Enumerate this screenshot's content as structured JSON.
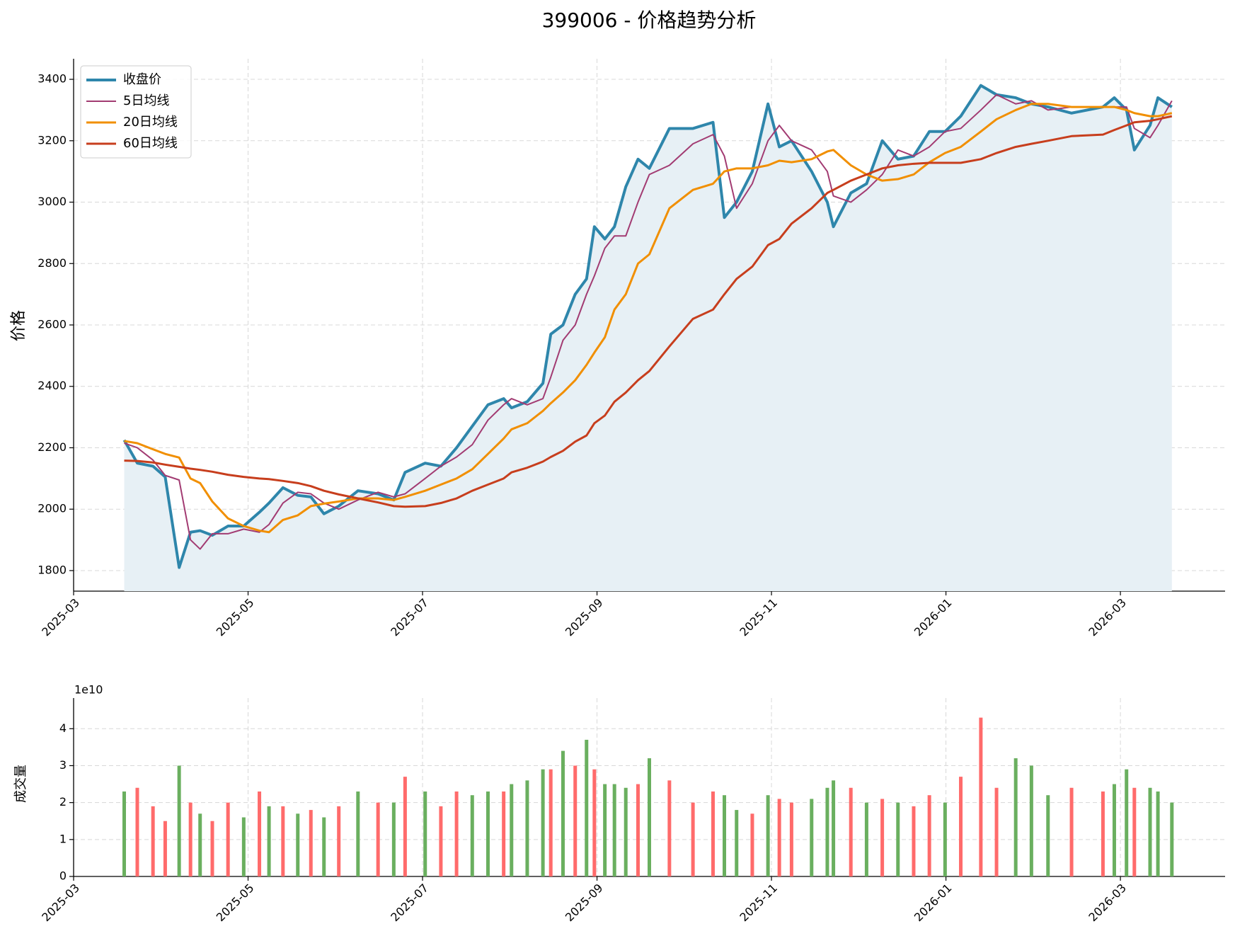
{
  "chart_data": [
    {
      "type": "line",
      "title": "399006 - 价格趋势分析",
      "y_label": "价格",
      "x": [
        0.58,
        0.73,
        0.91,
        1.05,
        1.21,
        1.34,
        1.45,
        1.59,
        1.77,
        1.95,
        2.13,
        2.24,
        2.4,
        2.57,
        2.72,
        2.87,
        3.04,
        3.26,
        3.49,
        3.67,
        3.8,
        4.03,
        4.21,
        4.39,
        4.57,
        4.75,
        4.93,
        5.02,
        5.2,
        5.38,
        5.47,
        5.61,
        5.75,
        5.88,
        5.97,
        6.09,
        6.2,
        6.33,
        6.47,
        6.6,
        6.83,
        7.1,
        7.33,
        7.46,
        7.6,
        7.78,
        7.96,
        8.09,
        8.23,
        8.46,
        8.64,
        8.71,
        8.91,
        9.09,
        9.27,
        9.45,
        9.63,
        9.81,
        9.99,
        10.17,
        10.4,
        10.58,
        10.8,
        10.98,
        11.17,
        11.44,
        11.8,
        11.93,
        12.07,
        12.16,
        12.34,
        12.43,
        12.59
      ],
      "xlim": [
        0,
        13.2
      ],
      "xticks": [
        {
          "value": 0,
          "label": "2025-03"
        },
        {
          "value": 2,
          "label": "2025-05"
        },
        {
          "value": 4,
          "label": "2025-07"
        },
        {
          "value": 6,
          "label": "2025-09"
        },
        {
          "value": 8,
          "label": "2025-11"
        },
        {
          "value": 10,
          "label": "2026-01"
        },
        {
          "value": 12,
          "label": "2026-03"
        }
      ],
      "ylim": [
        1733,
        3467
      ],
      "yticks": [
        1800,
        2000,
        2200,
        2400,
        2600,
        2800,
        3000,
        3200,
        3400
      ],
      "grid": true,
      "legend": "upper left",
      "area_fill": "#e7f0f5",
      "series": [
        {
          "name": "收盘价",
          "color": "#2e86ab",
          "width": 4,
          "values": [
            2225,
            2150,
            2140,
            2105,
            1810,
            1925,
            1930,
            1915,
            1945,
            1945,
            1990,
            2020,
            2070,
            2045,
            2040,
            1985,
            2010,
            2060,
            2050,
            2030,
            2120,
            2150,
            2140,
            2200,
            2270,
            2340,
            2360,
            2330,
            2350,
            2410,
            2570,
            2600,
            2700,
            2750,
            2920,
            2880,
            2920,
            3050,
            3140,
            3110,
            3240,
            3240,
            3260,
            2950,
            3000,
            3100,
            3320,
            3180,
            3200,
            3100,
            3000,
            2920,
            3030,
            3060,
            3200,
            3140,
            3150,
            3230,
            3230,
            3280,
            3380,
            3350,
            3340,
            3320,
            3310,
            3290,
            3310,
            3340,
            3300,
            3170,
            3250,
            3340,
            3310
          ]
        },
        {
          "name": "5日均线",
          "color": "#a23b72",
          "width": 2,
          "values": [
            2215,
            2200,
            2160,
            2110,
            2095,
            1900,
            1870,
            1920,
            1920,
            1935,
            1925,
            1950,
            2020,
            2055,
            2050,
            2020,
            2000,
            2030,
            2055,
            2040,
            2050,
            2100,
            2140,
            2170,
            2210,
            2290,
            2340,
            2360,
            2340,
            2360,
            2430,
            2550,
            2600,
            2700,
            2760,
            2850,
            2890,
            2890,
            3000,
            3090,
            3120,
            3190,
            3220,
            3150,
            2980,
            3060,
            3200,
            3250,
            3200,
            3170,
            3100,
            3020,
            3000,
            3040,
            3090,
            3170,
            3150,
            3180,
            3230,
            3240,
            3300,
            3350,
            3320,
            3330,
            3300,
            3310,
            3310,
            3310,
            3310,
            3240,
            3210,
            3250,
            3330
          ]
        },
        {
          "name": "20日均线",
          "color": "#f18f01",
          "width": 3,
          "values": [
            2222,
            2215,
            2195,
            2180,
            2168,
            2100,
            2085,
            2025,
            1970,
            1945,
            1930,
            1925,
            1965,
            1980,
            2010,
            2018,
            2025,
            2035,
            2035,
            2030,
            2040,
            2060,
            2080,
            2100,
            2130,
            2180,
            2230,
            2260,
            2280,
            2320,
            2345,
            2380,
            2420,
            2470,
            2510,
            2560,
            2650,
            2700,
            2800,
            2830,
            2980,
            3040,
            3060,
            3100,
            3110,
            3110,
            3120,
            3135,
            3130,
            3140,
            3165,
            3170,
            3120,
            3090,
            3070,
            3075,
            3090,
            3130,
            3160,
            3180,
            3230,
            3270,
            3300,
            3320,
            3320,
            3310,
            3310,
            3310,
            3300,
            3290,
            3280,
            3280,
            3290
          ]
        },
        {
          "name": "60日均线",
          "color": "#c73e1d",
          "width": 3,
          "values": [
            2158,
            2157,
            2152,
            2145,
            2138,
            2132,
            2128,
            2122,
            2112,
            2105,
            2100,
            2098,
            2092,
            2085,
            2075,
            2060,
            2048,
            2035,
            2022,
            2010,
            2008,
            2010,
            2020,
            2035,
            2060,
            2080,
            2100,
            2120,
            2135,
            2155,
            2170,
            2190,
            2220,
            2240,
            2280,
            2305,
            2350,
            2380,
            2420,
            2450,
            2530,
            2620,
            2650,
            2700,
            2750,
            2790,
            2860,
            2880,
            2930,
            2980,
            3030,
            3040,
            3070,
            3090,
            3110,
            3120,
            3125,
            3128,
            3128,
            3128,
            3140,
            3160,
            3180,
            3190,
            3200,
            3215,
            3220,
            3235,
            3250,
            3260,
            3265,
            3270,
            3280
          ]
        }
      ]
    },
    {
      "type": "bar",
      "y_label": "成交量",
      "offset_label": "1e10",
      "x": [
        0.58,
        0.73,
        0.91,
        1.05,
        1.21,
        1.34,
        1.45,
        1.59,
        1.77,
        1.95,
        2.13,
        2.24,
        2.4,
        2.57,
        2.72,
        2.87,
        3.04,
        3.26,
        3.49,
        3.67,
        3.8,
        4.03,
        4.21,
        4.39,
        4.57,
        4.75,
        4.93,
        5.02,
        5.2,
        5.38,
        5.47,
        5.61,
        5.75,
        5.88,
        5.97,
        6.09,
        6.2,
        6.33,
        6.47,
        6.6,
        6.83,
        7.1,
        7.33,
        7.46,
        7.6,
        7.78,
        7.96,
        8.09,
        8.23,
        8.46,
        8.64,
        8.71,
        8.91,
        9.09,
        9.27,
        9.45,
        9.63,
        9.81,
        9.99,
        10.17,
        10.4,
        10.58,
        10.8,
        10.98,
        11.17,
        11.44,
        11.8,
        11.93,
        12.07,
        12.16,
        12.34,
        12.43,
        12.59
      ],
      "values": [
        2.3,
        2.4,
        1.9,
        1.5,
        3.0,
        2.0,
        1.7,
        1.5,
        2.0,
        1.6,
        2.3,
        1.9,
        1.9,
        1.7,
        1.8,
        1.6,
        1.9,
        2.3,
        2.0,
        2.0,
        2.7,
        2.3,
        1.9,
        2.3,
        2.2,
        2.3,
        2.3,
        2.5,
        2.6,
        2.9,
        2.9,
        3.4,
        3.0,
        3.7,
        2.9,
        2.5,
        2.5,
        2.4,
        2.5,
        3.2,
        2.6,
        2.0,
        2.3,
        2.2,
        1.8,
        1.7,
        2.2,
        2.1,
        2.0,
        2.1,
        2.4,
        2.6,
        2.4,
        2.0,
        2.1,
        2.0,
        1.9,
        2.2,
        2.0,
        2.7,
        4.3,
        2.4,
        3.2,
        3.0,
        2.2,
        2.4,
        2.3,
        2.5,
        2.9,
        2.4,
        2.4,
        2.3,
        2.0
      ],
      "bar_colors": [
        "#6aaf5f",
        "#ff6b6b",
        "#ff6b6b",
        "#ff6b6b",
        "#6aaf5f",
        "#ff6b6b",
        "#6aaf5f",
        "#ff6b6b",
        "#ff6b6b",
        "#6aaf5f",
        "#ff6b6b",
        "#6aaf5f",
        "#ff6b6b",
        "#6aaf5f",
        "#ff6b6b",
        "#6aaf5f",
        "#ff6b6b",
        "#6aaf5f",
        "#ff6b6b",
        "#6aaf5f",
        "#ff6b6b",
        "#6aaf5f",
        "#ff6b6b",
        "#ff6b6b",
        "#6aaf5f",
        "#6aaf5f",
        "#ff6b6b",
        "#6aaf5f",
        "#6aaf5f",
        "#6aaf5f",
        "#ff6b6b",
        "#6aaf5f",
        "#ff6b6b",
        "#6aaf5f",
        "#ff6b6b",
        "#6aaf5f",
        "#6aaf5f",
        "#6aaf5f",
        "#ff6b6b",
        "#6aaf5f",
        "#ff6b6b",
        "#ff6b6b",
        "#ff6b6b",
        "#6aaf5f",
        "#6aaf5f",
        "#ff6b6b",
        "#6aaf5f",
        "#ff6b6b",
        "#ff6b6b",
        "#6aaf5f",
        "#6aaf5f",
        "#6aaf5f",
        "#ff6b6b",
        "#6aaf5f",
        "#ff6b6b",
        "#6aaf5f",
        "#ff6b6b",
        "#ff6b6b",
        "#6aaf5f",
        "#ff6b6b",
        "#ff6b6b",
        "#ff6b6b",
        "#6aaf5f",
        "#6aaf5f",
        "#6aaf5f",
        "#ff6b6b",
        "#ff6b6b",
        "#6aaf5f",
        "#6aaf5f",
        "#ff6b6b",
        "#6aaf5f",
        "#6aaf5f",
        "#6aaf5f"
      ],
      "xlim": [
        0,
        13.2
      ],
      "xticks": [
        {
          "value": 0,
          "label": "2025-03"
        },
        {
          "value": 2,
          "label": "2025-05"
        },
        {
          "value": 4,
          "label": "2025-07"
        },
        {
          "value": 6,
          "label": "2025-09"
        },
        {
          "value": 8,
          "label": "2025-11"
        },
        {
          "value": 10,
          "label": "2026-01"
        },
        {
          "value": 12,
          "label": "2026-03"
        }
      ],
      "ylim": [
        0,
        4.83
      ],
      "yticks": [
        0,
        1,
        2,
        3,
        4
      ],
      "grid": true
    }
  ]
}
